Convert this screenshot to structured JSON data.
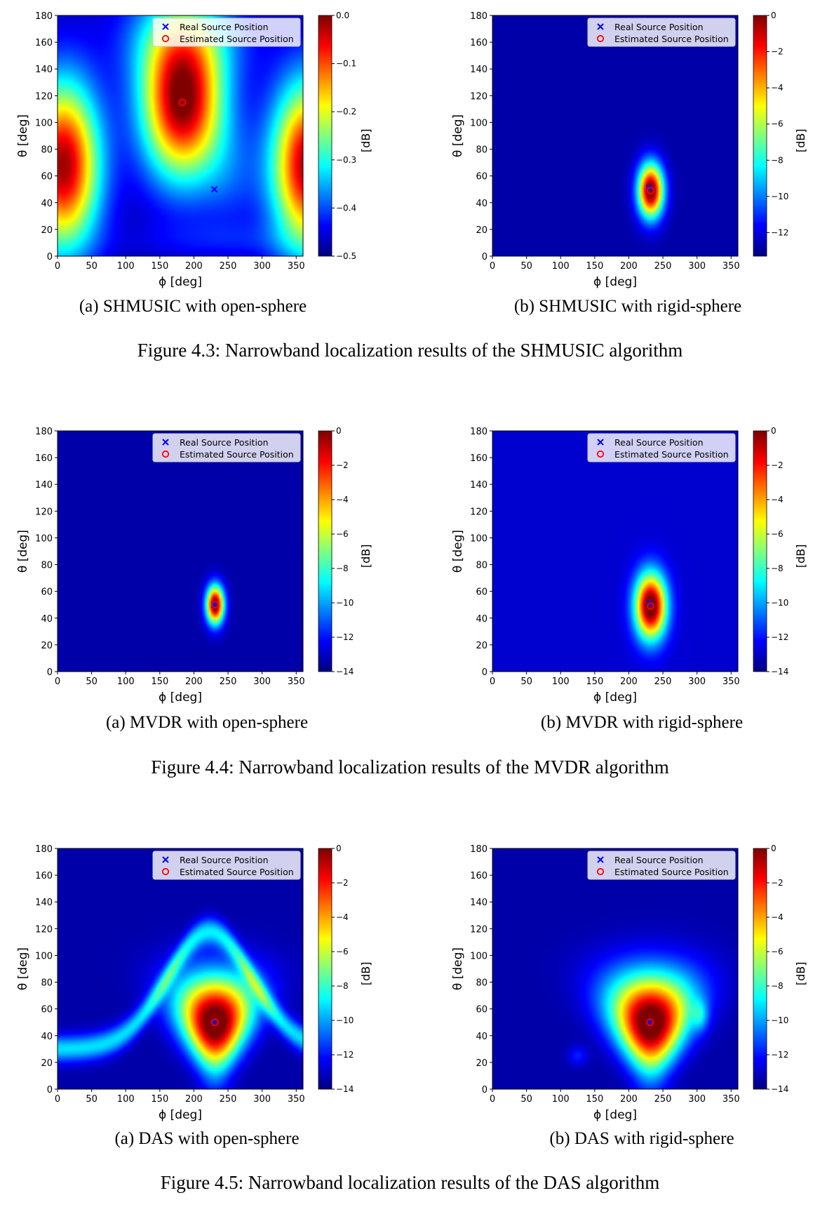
{
  "figures": [
    {
      "caption": "Figure 4.3: Narrowband localization results of the SHMUSIC algorithm",
      "panels": [
        {
          "subcaption": "(a) SHMUSIC with open-sphere"
        },
        {
          "subcaption": "(b) SHMUSIC with rigid-sphere"
        }
      ]
    },
    {
      "caption": "Figure 4.4: Narrowband localization results of the MVDR algorithm",
      "panels": [
        {
          "subcaption": "(a) MVDR with open-sphere"
        },
        {
          "subcaption": "(b) MVDR with rigid-sphere"
        }
      ]
    },
    {
      "caption": "Figure 4.5: Narrowband localization results of the DAS algorithm",
      "panels": [
        {
          "subcaption": "(a) DAS with open-sphere"
        },
        {
          "subcaption": "(b) DAS with rigid-sphere"
        }
      ]
    }
  ],
  "chart_data": [
    {
      "type": "heatmap",
      "title": "",
      "xlabel": "ϕ [deg]",
      "ylabel": "θ [deg]",
      "xlim": [
        0,
        360
      ],
      "ylim": [
        0,
        180
      ],
      "xticks": [
        "0",
        "50",
        "100",
        "150",
        "200",
        "250",
        "300",
        "350"
      ],
      "yticks": [
        "0",
        "20",
        "40",
        "60",
        "80",
        "100",
        "120",
        "140",
        "160",
        "180"
      ],
      "colorbar": {
        "label": "[dB]",
        "range": [
          -0.5,
          0.0
        ],
        "ticks": [
          "0.0",
          "−0.1",
          "−0.2",
          "−0.3",
          "−0.4",
          "−0.5"
        ]
      },
      "legend": {
        "position": "top-right",
        "entries": [
          "Real Source Position",
          "Estimated Source Position"
        ]
      },
      "real_source": {
        "phi": 230,
        "theta": 50
      },
      "estimated_source": {
        "phi": 183,
        "theta": 115
      },
      "colormap": "jet"
    },
    {
      "type": "heatmap",
      "title": "",
      "xlabel": "ϕ [deg]",
      "ylabel": "θ [deg]",
      "xlim": [
        0,
        360
      ],
      "ylim": [
        0,
        180
      ],
      "xticks": [
        "0",
        "50",
        "100",
        "150",
        "200",
        "250",
        "300",
        "350"
      ],
      "yticks": [
        "0",
        "20",
        "40",
        "60",
        "80",
        "100",
        "120",
        "140",
        "160",
        "180"
      ],
      "colorbar": {
        "label": "[dB]",
        "range": [
          -13.3,
          0
        ],
        "ticks": [
          "0",
          "−2",
          "−4",
          "−6",
          "−8",
          "−10",
          "−12"
        ]
      },
      "legend": {
        "position": "top-right",
        "entries": [
          "Real Source Position",
          "Estimated Source Position"
        ]
      },
      "real_source": {
        "phi": 230,
        "theta": 51
      },
      "estimated_source": {
        "phi": 232,
        "theta": 49
      },
      "colormap": "jet"
    },
    {
      "type": "heatmap",
      "title": "",
      "xlabel": "ϕ [deg]",
      "ylabel": "θ [deg]",
      "xlim": [
        0,
        360
      ],
      "ylim": [
        0,
        180
      ],
      "xticks": [
        "0",
        "50",
        "100",
        "150",
        "200",
        "250",
        "300",
        "350"
      ],
      "yticks": [
        "0",
        "20",
        "40",
        "60",
        "80",
        "100",
        "120",
        "140",
        "160",
        "180"
      ],
      "colorbar": {
        "label": "[dB]",
        "range": [
          -14,
          0
        ],
        "ticks": [
          "0",
          "−2",
          "−4",
          "−6",
          "−8",
          "−10",
          "−12",
          "−14"
        ]
      },
      "legend": {
        "position": "top-right",
        "entries": [
          "Real Source Position",
          "Estimated Source Position"
        ]
      },
      "real_source": {
        "phi": 230,
        "theta": 50
      },
      "estimated_source": {
        "phi": 231,
        "theta": 50
      },
      "colormap": "jet"
    },
    {
      "type": "heatmap",
      "title": "",
      "xlabel": "ϕ [deg]",
      "ylabel": "θ [deg]",
      "xlim": [
        0,
        360
      ],
      "ylim": [
        0,
        180
      ],
      "xticks": [
        "0",
        "50",
        "100",
        "150",
        "200",
        "250",
        "300",
        "350"
      ],
      "yticks": [
        "0",
        "20",
        "40",
        "60",
        "80",
        "100",
        "120",
        "140",
        "160",
        "180"
      ],
      "colorbar": {
        "label": "[dB]",
        "range": [
          -14,
          0
        ],
        "ticks": [
          "0",
          "−2",
          "−4",
          "−6",
          "−8",
          "−10",
          "−12",
          "−14"
        ]
      },
      "legend": {
        "position": "top-right",
        "entries": [
          "Real Source Position",
          "Estimated Source Position"
        ]
      },
      "real_source": {
        "phi": 230,
        "theta": 51
      },
      "estimated_source": {
        "phi": 232,
        "theta": 49
      },
      "colormap": "jet"
    },
    {
      "type": "heatmap",
      "title": "",
      "xlabel": "ϕ [deg]",
      "ylabel": "θ [deg]",
      "xlim": [
        0,
        360
      ],
      "ylim": [
        0,
        180
      ],
      "xticks": [
        "0",
        "50",
        "100",
        "150",
        "200",
        "250",
        "300",
        "350"
      ],
      "yticks": [
        "0",
        "20",
        "40",
        "60",
        "80",
        "100",
        "120",
        "140",
        "160",
        "180"
      ],
      "colorbar": {
        "label": "[dB]",
        "range": [
          -14,
          0
        ],
        "ticks": [
          "0",
          "−2",
          "−4",
          "−6",
          "−8",
          "−10",
          "−12",
          "−14"
        ]
      },
      "legend": {
        "position": "top-right",
        "entries": [
          "Real Source Position",
          "Estimated Source Position"
        ]
      },
      "real_source": {
        "phi": 230,
        "theta": 50
      },
      "estimated_source": {
        "phi": 231,
        "theta": 50
      },
      "colormap": "jet"
    },
    {
      "type": "heatmap",
      "title": "",
      "xlabel": "ϕ [deg]",
      "ylabel": "θ [deg]",
      "xlim": [
        0,
        360
      ],
      "ylim": [
        0,
        180
      ],
      "xticks": [
        "0",
        "50",
        "100",
        "150",
        "200",
        "250",
        "300",
        "350"
      ],
      "yticks": [
        "0",
        "20",
        "40",
        "60",
        "80",
        "100",
        "120",
        "140",
        "160",
        "180"
      ],
      "colorbar": {
        "label": "[dB]",
        "range": [
          -14,
          0
        ],
        "ticks": [
          "0",
          "−2",
          "−4",
          "−6",
          "−8",
          "−10",
          "−12",
          "−14"
        ]
      },
      "legend": {
        "position": "top-right",
        "entries": [
          "Real Source Position",
          "Estimated Source Position"
        ]
      },
      "real_source": {
        "phi": 230,
        "theta": 50
      },
      "estimated_source": {
        "phi": 231,
        "theta": 50
      },
      "colormap": "jet"
    }
  ]
}
